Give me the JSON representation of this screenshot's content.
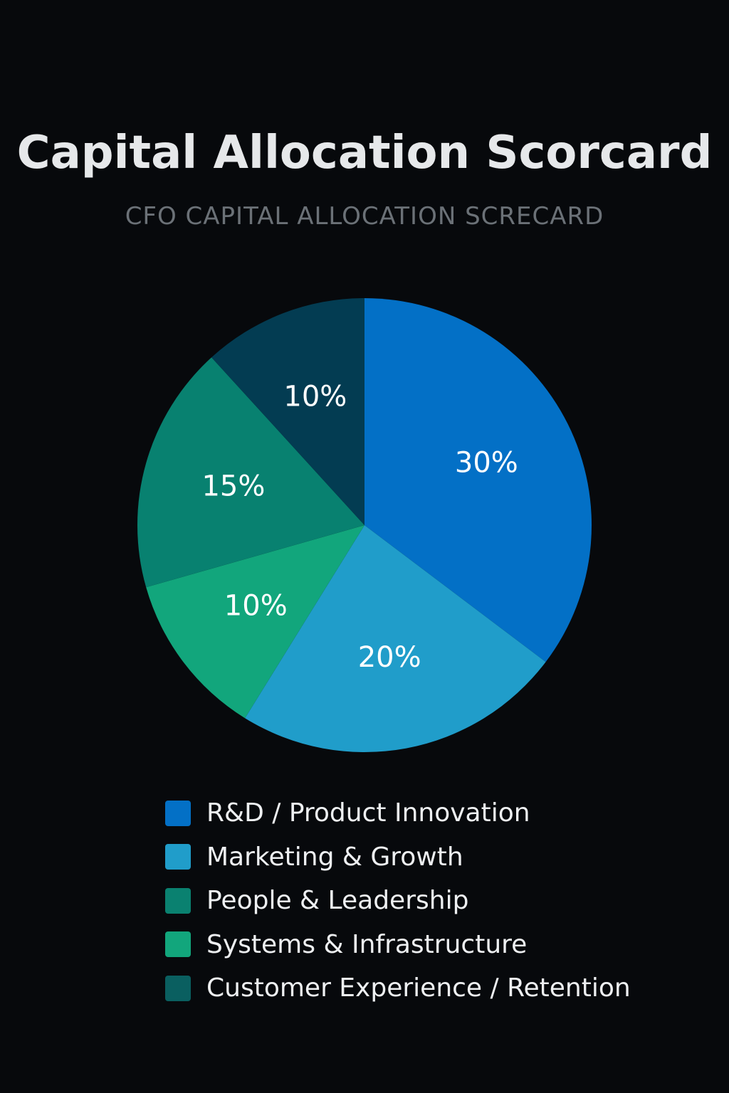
{
  "chart_data": {
    "type": "pie",
    "title": "Capital Allocation Scorcard",
    "subtitle": "CFO CAPITAL ALLOCATION SCRECARD",
    "slices": [
      {
        "label": "R&D / Product Innovation",
        "value": 30,
        "display": "30%",
        "color": "#0370c6"
      },
      {
        "label": "Marketing & Growth",
        "value": 20,
        "display": "20%",
        "color": "#209dca"
      },
      {
        "label": "Systems & Infrastructure",
        "value": 10,
        "display": "10%",
        "color": "#12a67c"
      },
      {
        "label": "People & Leadership",
        "value": 15,
        "display": "15%",
        "color": "#088170"
      },
      {
        "label": "Customer Experience / Retention",
        "value": 10,
        "display": "10%",
        "color": "#033c52"
      }
    ],
    "legend": [
      {
        "label": "R&D / Product Innovation",
        "color": "#0370c6"
      },
      {
        "label": "Marketing & Growth",
        "color": "#209dca"
      },
      {
        "label": "People & Leadership",
        "color": "#0a8170"
      },
      {
        "label": "Systems & Infrastructure",
        "color": "#12a67c"
      },
      {
        "label": "Customer Experience / Retention",
        "color": "#0a5f60"
      }
    ]
  }
}
